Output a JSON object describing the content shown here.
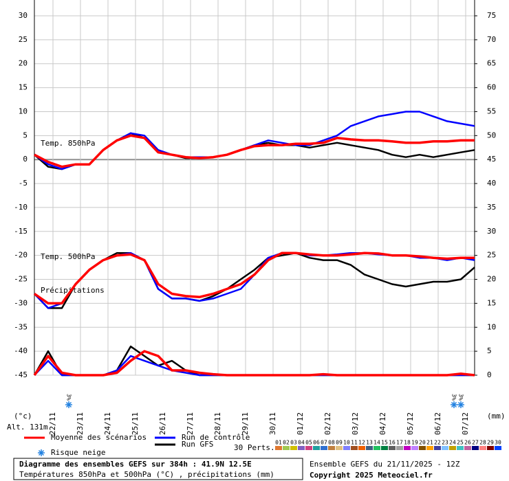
{
  "chart_data": {
    "type": "line",
    "y_unit_label": "(°c)",
    "y2_unit_label": "(mm)",
    "altitude": "Alt. 131m",
    "annotations": {
      "t850": "Temp. 850hPa",
      "t500": "Temp. 500hPa",
      "precip": "Précipitations"
    },
    "xlim": [
      0,
      16
    ],
    "xticks": [
      {
        "value": 0.675,
        "label": "22/11"
      },
      {
        "value": 1.675,
        "label": "23/11"
      },
      {
        "value": 2.675,
        "label": "24/11"
      },
      {
        "value": 3.675,
        "label": "25/11"
      },
      {
        "value": 4.675,
        "label": "26/11"
      },
      {
        "value": 5.675,
        "label": "27/11"
      },
      {
        "value": 6.675,
        "label": "28/11"
      },
      {
        "value": 7.675,
        "label": "29/11"
      },
      {
        "value": 8.675,
        "label": "30/11"
      },
      {
        "value": 9.675,
        "label": "01/12"
      },
      {
        "value": 10.675,
        "label": "02/12"
      },
      {
        "value": 11.675,
        "label": "03/12"
      },
      {
        "value": 12.675,
        "label": "04/12"
      },
      {
        "value": 13.675,
        "label": "05/12"
      },
      {
        "value": 14.675,
        "label": "06/12"
      },
      {
        "value": 15.675,
        "label": "07/12"
      }
    ],
    "ylim": [
      -45,
      30
    ],
    "yticks": [
      -45,
      -40,
      -35,
      -30,
      -25,
      -20,
      -15,
      -10,
      -5,
      0,
      5,
      10,
      15,
      20,
      25,
      30
    ],
    "y2lim": [
      0,
      75
    ],
    "y2ticks": [
      0,
      5,
      10,
      15,
      20,
      25,
      30,
      35,
      40,
      45,
      50,
      55,
      60,
      65,
      70,
      75
    ],
    "grid": true,
    "x": [
      0,
      0.5,
      1,
      1.5,
      2,
      2.5,
      3,
      3.5,
      4,
      4.5,
      5,
      5.5,
      6,
      6.5,
      7,
      7.5,
      8,
      8.5,
      9,
      9.5,
      10,
      10.5,
      11,
      11.5,
      12,
      12.5,
      13,
      13.5,
      14,
      14.5,
      15,
      15.5,
      16
    ],
    "series": [
      {
        "name": "Moyenne des scénarios",
        "color": "#ff0000",
        "t850": [
          1,
          -0.5,
          -1.5,
          -1,
          -1,
          2,
          4,
          5,
          4.5,
          1.5,
          1,
          0.5,
          0.3,
          0.5,
          1,
          2,
          2.8,
          3,
          3,
          3.3,
          3.3,
          3.5,
          4.5,
          4.2,
          4,
          4,
          3.8,
          3.5,
          3.5,
          3.8,
          3.8,
          4,
          4
        ],
        "t500": [
          -28,
          -30,
          -30,
          -26,
          -23,
          -21,
          -20,
          -19.8,
          -21,
          -26,
          -28,
          -28.5,
          -28.7,
          -28,
          -27,
          -26,
          -24,
          -21,
          -19.5,
          -19.5,
          -19.8,
          -20,
          -20,
          -19.8,
          -19.5,
          -19.6,
          -20,
          -20,
          -20.2,
          -20.5,
          -20.7,
          -20.5,
          -20.5
        ],
        "precip": [
          0,
          4,
          0.5,
          0,
          0,
          0,
          0.5,
          3,
          5,
          4,
          1,
          1,
          0.5,
          0.2,
          0,
          0,
          0,
          0,
          0,
          0,
          0,
          0.2,
          0,
          0,
          0,
          0,
          0,
          0,
          0,
          0,
          0,
          0.3,
          0
        ]
      },
      {
        "name": "Run de contrôle",
        "color": "#0000ff",
        "t850": [
          1,
          -1,
          -2,
          -1,
          -1,
          2,
          4,
          5.5,
          5,
          2,
          1,
          0.5,
          0.5,
          0.5,
          1,
          2,
          3,
          4,
          3.5,
          3,
          3,
          4,
          5,
          7,
          8,
          9,
          9.5,
          10,
          10,
          9,
          8,
          7.5,
          7
        ],
        "t500": [
          -28,
          -31,
          -30,
          -26,
          -23,
          -21,
          -20,
          -19.5,
          -21,
          -27,
          -29,
          -29,
          -29.5,
          -29,
          -28,
          -27,
          -24,
          -20.5,
          -19.5,
          -19.5,
          -20,
          -20,
          -19.8,
          -19.5,
          -19.5,
          -19.8,
          -20,
          -20,
          -20.5,
          -20.5,
          -21,
          -20.5,
          -21
        ],
        "precip": [
          0,
          3,
          0,
          0,
          0,
          0,
          1,
          4,
          3,
          2,
          1,
          0.5,
          0,
          0,
          0,
          0,
          0,
          0,
          0,
          0,
          0,
          0,
          0,
          0,
          0,
          0,
          0,
          0,
          0,
          0,
          0,
          0,
          0
        ]
      },
      {
        "name": "Run GFS",
        "color": "#000000",
        "t850": [
          1,
          -1.5,
          -2,
          -1,
          -1,
          2,
          4,
          5.5,
          4.5,
          1.5,
          1,
          0.3,
          0.3,
          0.5,
          1,
          2,
          3,
          3.5,
          3,
          3,
          2.5,
          3,
          3.5,
          3,
          2.5,
          2,
          1,
          0.5,
          1,
          0.5,
          1,
          1.5,
          2
        ],
        "t500": [
          -28,
          -31,
          -31,
          -26,
          -23,
          -21,
          -19.5,
          -19.5,
          -21,
          -27,
          -29,
          -29,
          -29.5,
          -28.5,
          -27,
          -25,
          -23,
          -20.5,
          -20,
          -19.5,
          -20.5,
          -21,
          -21,
          -22,
          -24,
          -25,
          -26,
          -26.5,
          -26,
          -25.5,
          -25.5,
          -25,
          -22.5
        ],
        "precip": [
          0,
          5,
          0,
          0,
          0,
          0,
          1,
          6,
          4,
          2,
          3,
          1,
          0,
          0,
          0,
          0,
          0,
          0,
          0,
          0,
          0,
          0,
          0,
          0,
          0,
          0,
          0,
          0,
          0,
          0,
          0,
          0,
          0
        ]
      }
    ],
    "snow_risk_label": "Risque neige",
    "snow_risk": [
      {
        "x": 1.25,
        "label": "3%"
      },
      {
        "x": 15.25,
        "label": "3%"
      },
      {
        "x": 15.5,
        "label": "3%"
      }
    ],
    "perturbations_label": "30 Perts.",
    "perturbations": [
      {
        "label": "01",
        "color": "#e07830"
      },
      {
        "label": "02",
        "color": "#a0c850"
      },
      {
        "label": "03",
        "color": "#d0c000"
      },
      {
        "label": "04",
        "color": "#8060c0"
      },
      {
        "label": "05",
        "color": "#d04080"
      },
      {
        "label": "06",
        "color": "#20a0a0"
      },
      {
        "label": "07",
        "color": "#3070d0"
      },
      {
        "label": "08",
        "color": "#c08040"
      },
      {
        "label": "09",
        "color": "#e0c080"
      },
      {
        "label": "10",
        "color": "#8080ff"
      },
      {
        "label": "11",
        "color": "#a05020"
      },
      {
        "label": "12",
        "color": "#f06000"
      },
      {
        "label": "13",
        "color": "#406080"
      },
      {
        "label": "14",
        "color": "#20c060"
      },
      {
        "label": "15",
        "color": "#008040"
      },
      {
        "label": "16",
        "color": "#606060"
      },
      {
        "label": "17",
        "color": "#a0a0a0"
      },
      {
        "label": "18",
        "color": "#c000c0"
      },
      {
        "label": "19",
        "color": "#c080ff"
      },
      {
        "label": "20",
        "color": "#805000"
      },
      {
        "label": "21",
        "color": "#ffa000"
      },
      {
        "label": "22",
        "color": "#4040a0"
      },
      {
        "label": "23",
        "color": "#80c0ff"
      },
      {
        "label": "24",
        "color": "#c0a000"
      },
      {
        "label": "25",
        "color": "#40c0c0"
      },
      {
        "label": "26",
        "color": "#c060a0"
      },
      {
        "label": "27",
        "color": "#000080"
      },
      {
        "label": "28",
        "color": "#ff8080"
      },
      {
        "label": "29",
        "color": "#800000"
      },
      {
        "label": "30",
        "color": "#0040ff"
      }
    ],
    "footer": {
      "title": "Diagramme des ensembles GEFS sur 384h : 41.9N 12.5E",
      "subtitle": "Températures 850hPa et 500hPa (°C) , précipitations (mm)",
      "run": "Ensemble GEFS du 21/11/2025 - 12Z",
      "copyright": "Copyright 2025 Meteociel.fr"
    }
  }
}
